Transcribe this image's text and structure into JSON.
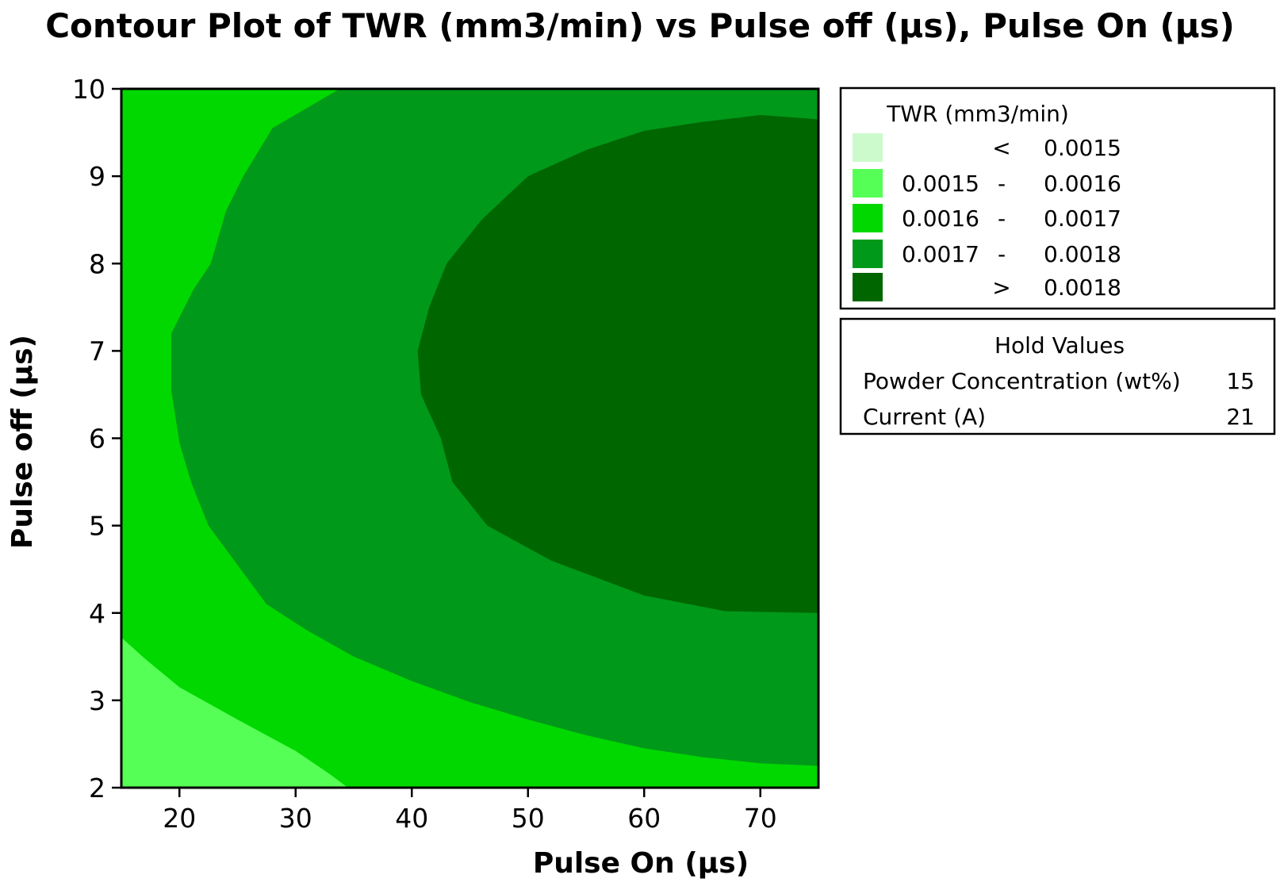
{
  "chart_data": {
    "type": "contour",
    "title": "Contour Plot of TWR (mm3/min) vs Pulse off (μs), Pulse On (μs)",
    "xlabel": "Pulse On (μs)",
    "ylabel": "Pulse off (μs)",
    "xlim": [
      15,
      75
    ],
    "ylim": [
      2,
      10
    ],
    "x_ticks": [
      20,
      30,
      40,
      50,
      60,
      70
    ],
    "y_ticks": [
      2,
      3,
      4,
      5,
      6,
      7,
      8,
      9,
      10
    ],
    "legend": {
      "title": "TWR (mm3/min)",
      "position": "right",
      "levels": [
        {
          "lower": "",
          "op": "<",
          "upper": "0.0015",
          "color": "#ccfacc"
        },
        {
          "lower": "0.0015",
          "op": "-",
          "upper": "0.0016",
          "color": "#55ff55"
        },
        {
          "lower": "0.0016",
          "op": "-",
          "upper": "0.0017",
          "color": "#00d800"
        },
        {
          "lower": "0.0017",
          "op": "-",
          "upper": "0.0018",
          "color": "#00991a"
        },
        {
          "lower": "",
          "op": ">",
          "upper": "0.0018",
          "color": "#006600"
        }
      ]
    },
    "hold_values": {
      "title": "Hold Values",
      "items": [
        {
          "label": "Powder Concentration (wt%)",
          "value": "15"
        },
        {
          "label": "Current (A)",
          "value": "21"
        }
      ]
    },
    "regions": [
      {
        "level": 1,
        "points": [
          [
            15,
            3.72
          ],
          [
            17,
            3.48
          ],
          [
            20,
            3.15
          ],
          [
            25,
            2.78
          ],
          [
            30,
            2.42
          ],
          [
            33,
            2.15
          ],
          [
            34.5,
            2
          ],
          [
            15,
            2
          ]
        ]
      },
      {
        "level": 3,
        "points": [
          [
            33.8,
            10
          ],
          [
            28,
            9.55
          ],
          [
            25.5,
            9.0
          ],
          [
            24,
            8.6
          ],
          [
            22.7,
            8.0
          ],
          [
            21.2,
            7.7
          ],
          [
            19.3,
            7.2
          ],
          [
            19.3,
            6.55
          ],
          [
            20,
            5.95
          ],
          [
            21,
            5.5
          ],
          [
            22.5,
            5.0
          ],
          [
            25,
            4.55
          ],
          [
            27.5,
            4.1
          ],
          [
            31,
            3.8
          ],
          [
            35,
            3.5
          ],
          [
            40,
            3.22
          ],
          [
            45,
            2.98
          ],
          [
            50,
            2.78
          ],
          [
            55,
            2.6
          ],
          [
            60,
            2.45
          ],
          [
            65,
            2.35
          ],
          [
            70,
            2.28
          ],
          [
            75,
            2.25
          ],
          [
            75,
            10
          ]
        ]
      },
      {
        "level": 4,
        "points": [
          [
            75,
            9.65
          ],
          [
            70,
            9.7
          ],
          [
            65,
            9.62
          ],
          [
            60,
            9.52
          ],
          [
            55,
            9.3
          ],
          [
            50,
            9.0
          ],
          [
            46,
            8.5
          ],
          [
            43,
            8.0
          ],
          [
            41.5,
            7.5
          ],
          [
            40.5,
            7.0
          ],
          [
            40.8,
            6.5
          ],
          [
            42.5,
            6.0
          ],
          [
            43.5,
            5.5
          ],
          [
            46.5,
            5.0
          ],
          [
            52,
            4.6
          ],
          [
            60,
            4.2
          ],
          [
            67,
            4.02
          ],
          [
            75,
            4.0
          ]
        ]
      }
    ]
  }
}
